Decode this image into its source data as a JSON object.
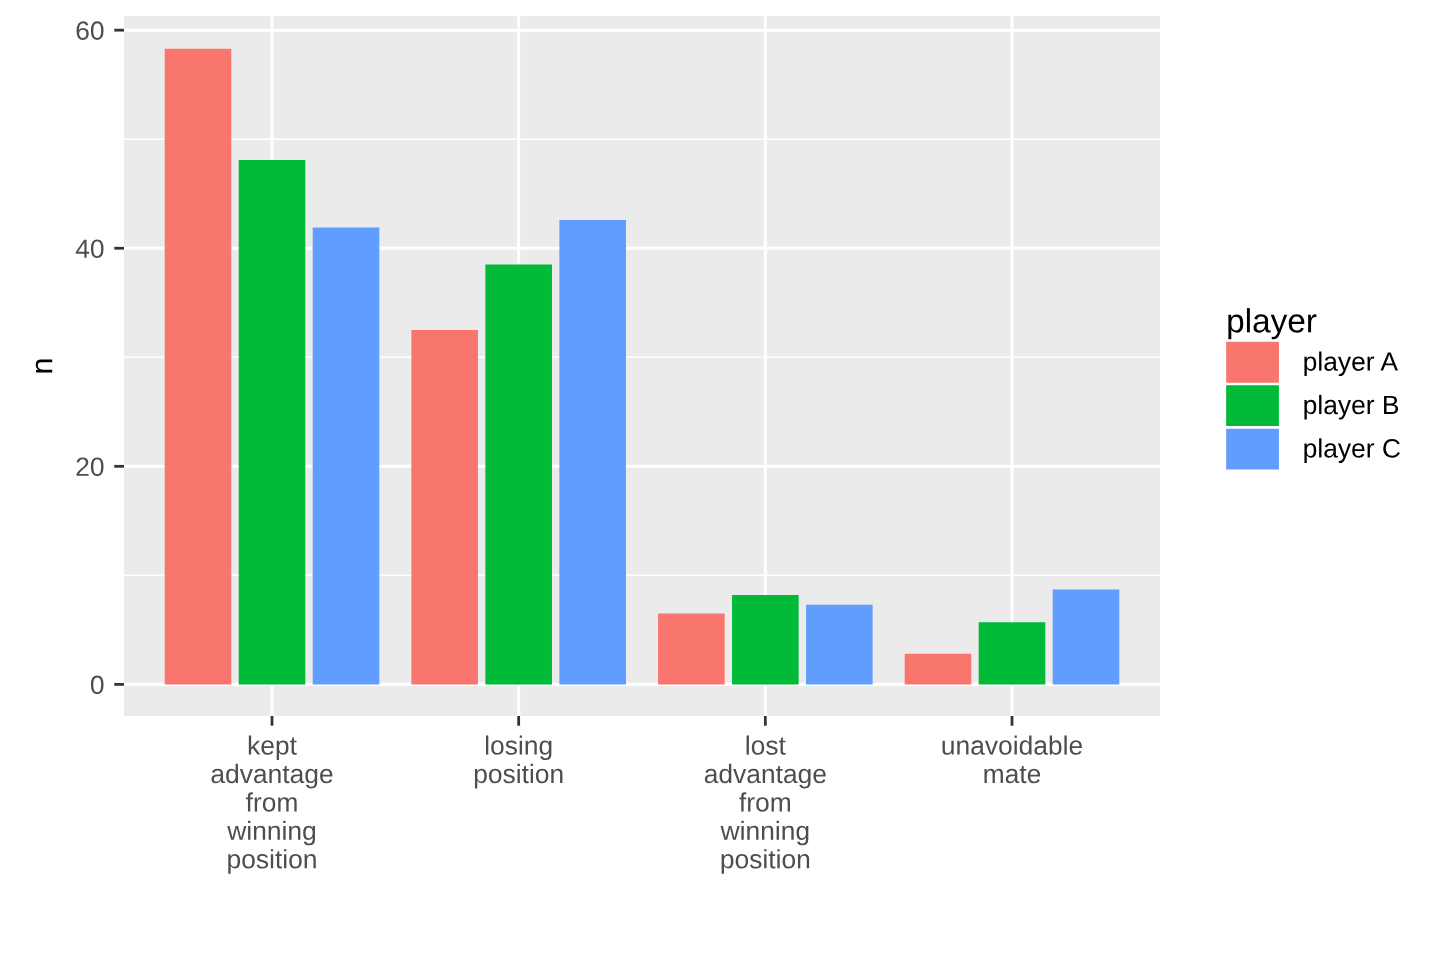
{
  "chart_data": {
    "type": "bar",
    "categories": [
      "kept\nadvantage\nfrom\nwinning\nposition",
      "losing\nposition",
      "lost\nadvantage\nfrom\nwinning\nposition",
      "unavoidable\nmate"
    ],
    "series": [
      {
        "name": "player A",
        "color": "#f8766d",
        "values": [
          58.3,
          32.5,
          6.5,
          2.8
        ]
      },
      {
        "name": "player B",
        "color": "#00ba38",
        "values": [
          48.1,
          38.5,
          8.2,
          5.7
        ]
      },
      {
        "name": "player C",
        "color": "#619cff",
        "values": [
          41.9,
          42.6,
          7.3,
          8.7
        ]
      }
    ],
    "ylabel": "n",
    "legend_title": "player",
    "legend": "right",
    "grid": true,
    "ylim": [
      -2.9,
      61.3
    ],
    "yticks": [
      0,
      20,
      40,
      60
    ]
  }
}
